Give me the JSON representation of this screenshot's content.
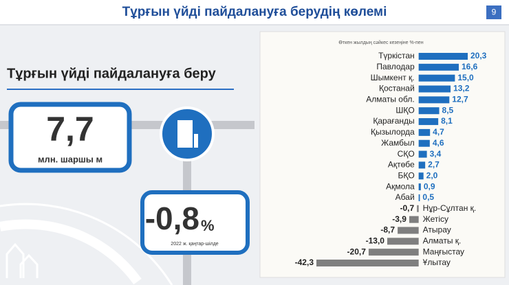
{
  "header": {
    "title": "Тұрғын үйді пайдалануға берудің көлемі",
    "page_number": "9"
  },
  "section_title": "Тұрғын үйді пайдалануға беру",
  "stat_main": {
    "value": "7,7",
    "unit": "млн. шаршы м"
  },
  "stat_change": {
    "value": "-0,8",
    "unit": "%",
    "period": "2022 ж. қаңтар-шілде"
  },
  "chart_data": {
    "type": "hbar",
    "subtitle": "Өткен жылдың сәйкес кезеңіне %-пен",
    "categories": [
      "Түркістан",
      "Павлодар",
      "Шымкент қ.",
      "Қостанай",
      "Алматы обл.",
      "ШҚО",
      "Қарағанды",
      "Қызылорда",
      "Жамбыл",
      "СҚО",
      "Ақтөбе",
      "БҚО",
      "Ақмола",
      "Абай",
      "Нұр-Сұлтан қ.",
      "Жетісу",
      "Атырау",
      "Алматы қ.",
      "Маңғыстау",
      "Ұлытау"
    ],
    "values": [
      20.3,
      16.6,
      15.0,
      13.2,
      12.7,
      8.5,
      8.1,
      4.7,
      4.6,
      3.4,
      2.7,
      2.0,
      0.9,
      0.5,
      -0.7,
      -3.9,
      -8.7,
      -13.0,
      -20.7,
      -42.3
    ],
    "value_labels": [
      "20,3",
      "16,6",
      "15,0",
      "13,2",
      "12,7",
      "8,5",
      "8,1",
      "4,7",
      "4,6",
      "3,4",
      "2,7",
      "2,0",
      "0,9",
      "0,5",
      "-0,7",
      "-3,9",
      "-8,7",
      "-13,0",
      "-20,7",
      "-42,3"
    ],
    "color": "#1f6fbf",
    "negative_color": "#7f7f7f"
  }
}
